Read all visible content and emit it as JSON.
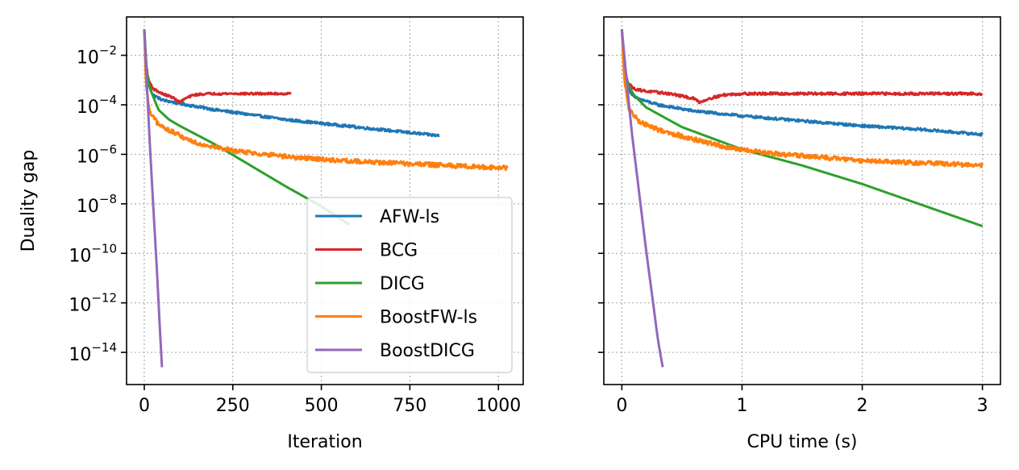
{
  "chart_data": [
    {
      "type": "line",
      "xlabel": "Iteration",
      "ylabel": "Duality gap",
      "yscale": "log",
      "xlim": [
        -50,
        1070
      ],
      "ylim_exp": [
        -15.3,
        -0.45
      ],
      "xticks": [
        0,
        250,
        500,
        750,
        1000
      ],
      "yticks_exp": [
        -14,
        -12,
        -10,
        -8,
        -6,
        -4,
        -2
      ],
      "grid": true,
      "legend_position": "lower-right",
      "series": [
        {
          "name": "AFW-ls",
          "color": "#1f77b4",
          "noise": 0.05,
          "points": [
            [
              0,
              -0.95
            ],
            [
              5,
              -2.3
            ],
            [
              12,
              -3.2
            ],
            [
              25,
              -3.6
            ],
            [
              50,
              -3.8
            ],
            [
              100,
              -3.95
            ],
            [
              200,
              -4.2
            ],
            [
              300,
              -4.4
            ],
            [
              400,
              -4.6
            ],
            [
              500,
              -4.75
            ],
            [
              600,
              -4.9
            ],
            [
              700,
              -5.05
            ],
            [
              833,
              -5.25
            ]
          ]
        },
        {
          "name": "BCG",
          "color": "#d62728",
          "noise": 0.04,
          "points": [
            [
              0,
              -0.95
            ],
            [
              5,
              -2.4
            ],
            [
              12,
              -3.0
            ],
            [
              25,
              -3.35
            ],
            [
              50,
              -3.55
            ],
            [
              80,
              -3.7
            ],
            [
              100,
              -3.9
            ],
            [
              115,
              -3.75
            ],
            [
              140,
              -3.6
            ],
            [
              180,
              -3.55
            ],
            [
              230,
              -3.55
            ],
            [
              415,
              -3.55
            ]
          ]
        },
        {
          "name": "DICG",
          "color": "#2ca02c",
          "noise": 0.0,
          "points": [
            [
              0,
              -0.95
            ],
            [
              5,
              -2.5
            ],
            [
              15,
              -3.3
            ],
            [
              40,
              -4.2
            ],
            [
              70,
              -4.6
            ],
            [
              100,
              -4.85
            ],
            [
              200,
              -5.6
            ],
            [
              300,
              -6.45
            ],
            [
              400,
              -7.3
            ],
            [
              500,
              -8.1
            ],
            [
              580,
              -8.85
            ]
          ]
        },
        {
          "name": "BoostFW-ls",
          "color": "#ff7f0e",
          "noise": 0.09,
          "points": [
            [
              0,
              -0.95
            ],
            [
              5,
              -3.2
            ],
            [
              15,
              -4.3
            ],
            [
              40,
              -4.8
            ],
            [
              100,
              -5.25
            ],
            [
              150,
              -5.55
            ],
            [
              250,
              -5.85
            ],
            [
              400,
              -6.1
            ],
            [
              550,
              -6.25
            ],
            [
              700,
              -6.35
            ],
            [
              850,
              -6.45
            ],
            [
              1025,
              -6.55
            ]
          ]
        },
        {
          "name": "BoostDICG",
          "color": "#9467bd",
          "noise": 0.0,
          "points": [
            [
              0,
              -0.95
            ],
            [
              5,
              -2.5
            ],
            [
              15,
              -5.4
            ],
            [
              25,
              -8.0
            ],
            [
              35,
              -10.5
            ],
            [
              45,
              -13.3
            ],
            [
              50,
              -14.6
            ]
          ]
        }
      ],
      "legend": [
        "AFW-ls",
        "BCG",
        "DICG",
        "BoostFW-ls",
        "BoostDICG"
      ]
    },
    {
      "type": "line",
      "xlabel": "CPU time (s)",
      "ylabel": "",
      "yscale": "log",
      "xlim": [
        -0.15,
        3.15
      ],
      "ylim_exp": [
        -15.3,
        -0.45
      ],
      "xticks": [
        0,
        1,
        2,
        3
      ],
      "yticks_exp": [
        -14,
        -12,
        -10,
        -8,
        -6,
        -4,
        -2
      ],
      "grid": true,
      "series": [
        {
          "name": "AFW-ls",
          "color": "#1f77b4",
          "noise": 0.05,
          "points": [
            [
              0,
              -0.95
            ],
            [
              0.02,
              -2.5
            ],
            [
              0.05,
              -3.3
            ],
            [
              0.1,
              -3.7
            ],
            [
              0.3,
              -4.0
            ],
            [
              0.6,
              -4.25
            ],
            [
              1.0,
              -4.45
            ],
            [
              1.5,
              -4.65
            ],
            [
              2.0,
              -4.85
            ],
            [
              2.5,
              -5.0
            ],
            [
              3.0,
              -5.2
            ]
          ]
        },
        {
          "name": "BCG",
          "color": "#d62728",
          "noise": 0.05,
          "points": [
            [
              0,
              -0.95
            ],
            [
              0.02,
              -2.5
            ],
            [
              0.05,
              -3.1
            ],
            [
              0.1,
              -3.35
            ],
            [
              0.2,
              -3.45
            ],
            [
              0.4,
              -3.55
            ],
            [
              0.6,
              -3.75
            ],
            [
              0.65,
              -3.9
            ],
            [
              0.72,
              -3.75
            ],
            [
              0.85,
              -3.6
            ],
            [
              1.0,
              -3.55
            ],
            [
              1.5,
              -3.55
            ],
            [
              3.0,
              -3.55
            ]
          ]
        },
        {
          "name": "DICG",
          "color": "#2ca02c",
          "noise": 0.0,
          "points": [
            [
              0,
              -0.95
            ],
            [
              0.02,
              -2.3
            ],
            [
              0.05,
              -3.2
            ],
            [
              0.1,
              -3.6
            ],
            [
              0.2,
              -4.1
            ],
            [
              0.5,
              -4.9
            ],
            [
              1.0,
              -5.8
            ],
            [
              1.5,
              -6.45
            ],
            [
              2.0,
              -7.2
            ],
            [
              2.5,
              -8.05
            ],
            [
              3.0,
              -8.9
            ]
          ]
        },
        {
          "name": "BoostFW-ls",
          "color": "#ff7f0e",
          "noise": 0.09,
          "points": [
            [
              0,
              -0.95
            ],
            [
              0.02,
              -3.0
            ],
            [
              0.06,
              -4.2
            ],
            [
              0.15,
              -4.7
            ],
            [
              0.3,
              -5.0
            ],
            [
              0.6,
              -5.4
            ],
            [
              0.9,
              -5.75
            ],
            [
              1.2,
              -5.95
            ],
            [
              1.6,
              -6.1
            ],
            [
              2.0,
              -6.25
            ],
            [
              2.5,
              -6.35
            ],
            [
              3.0,
              -6.45
            ]
          ]
        },
        {
          "name": "BoostDICG",
          "color": "#9467bd",
          "noise": 0.0,
          "points": [
            [
              0,
              -0.95
            ],
            [
              0.03,
              -2.5
            ],
            [
              0.08,
              -5.0
            ],
            [
              0.15,
              -7.8
            ],
            [
              0.2,
              -9.8
            ],
            [
              0.26,
              -12.0
            ],
            [
              0.3,
              -13.5
            ],
            [
              0.34,
              -14.6
            ]
          ]
        }
      ]
    }
  ]
}
